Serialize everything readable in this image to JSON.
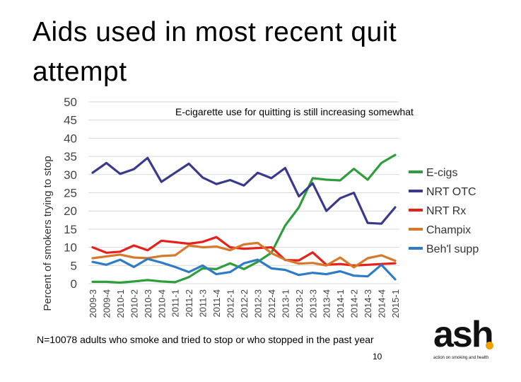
{
  "title": "Aids used in most recent quit attempt",
  "footnote": "N=10078 adults who smoke and tried to stop or who stopped in the past year",
  "page_number": "10",
  "logo": {
    "word": "ash",
    "tagline": "action on smoking and health",
    "dot_color": "#f0a000"
  },
  "chart_data": {
    "type": "line",
    "annotation": "E-cigarette use for quitting is still increasing somewhat",
    "ylabel": "Percent of smokers trying to stop",
    "xlabel": "",
    "ylim": [
      0,
      50
    ],
    "yticks": [
      0,
      5,
      10,
      15,
      20,
      25,
      30,
      35,
      40,
      45,
      50
    ],
    "grid": true,
    "legend_position": "right",
    "x": [
      "2009-3",
      "2009-4",
      "2010-1",
      "2010-2",
      "2010-3",
      "2010-4",
      "2011-1",
      "2011-2",
      "2011-3",
      "2011-4",
      "2012-1",
      "2012-2",
      "2012-3",
      "2012-4",
      "2013-1",
      "2013-2",
      "2013-3",
      "2013-4",
      "2014-1",
      "2014-2",
      "2014-3",
      "2014-4",
      "2015-1"
    ],
    "xlabels_shown": [
      "2009-3",
      "2009-4",
      "2010-1",
      "2010-2",
      "2010-3",
      "2010-4",
      "2011-1",
      "2011-2",
      "2011-3",
      "2011-4",
      "2012-1",
      "2012-2",
      "2012-3",
      "2012-4",
      "2013-1",
      "2013-2",
      "2013-3",
      "2013-4",
      "2014-1",
      "2014-2",
      "2014-3",
      "2014-4",
      "2015-1"
    ],
    "series": [
      {
        "name": "E-cigs",
        "color": "#2e9e3c",
        "values": [
          0.5,
          0.5,
          0.3,
          0.6,
          1.0,
          0.6,
          0.4,
          1.8,
          4.2,
          4.0,
          5.6,
          4.0,
          6.0,
          8.5,
          16.0,
          21.0,
          29.0,
          28.6,
          28.4,
          31.6,
          28.6,
          33.2,
          35.4
        ]
      },
      {
        "name": "NRT OTC",
        "color": "#3a3a8c",
        "values": [
          30.5,
          33.2,
          30.2,
          31.5,
          34.6,
          28.0,
          30.5,
          33.0,
          29.2,
          27.4,
          28.5,
          27.0,
          30.5,
          29.0,
          31.8,
          24.0,
          27.6,
          20.0,
          23.5,
          25.0,
          16.7,
          16.5,
          21.0
        ]
      },
      {
        "name": "NRT Rx",
        "color": "#e8201c",
        "values": [
          10.0,
          8.5,
          8.8,
          10.5,
          9.2,
          11.8,
          11.4,
          11.0,
          11.5,
          12.8,
          10.0,
          9.6,
          9.8,
          10.0,
          6.5,
          6.4,
          8.6,
          5.2,
          5.4,
          5.0,
          5.2,
          5.4,
          5.6
        ]
      },
      {
        "name": "Champix",
        "color": "#d6792a",
        "values": [
          7.0,
          7.5,
          8.0,
          7.2,
          7.0,
          7.6,
          7.8,
          10.5,
          10.0,
          10.2,
          9.2,
          10.8,
          11.2,
          8.4,
          6.6,
          5.5,
          5.7,
          5.0,
          7.2,
          4.5,
          7.0,
          7.8,
          6.3
        ]
      },
      {
        "name": "Beh'l supp",
        "color": "#2f7cc4",
        "values": [
          6.0,
          5.2,
          6.6,
          4.6,
          6.8,
          5.8,
          4.6,
          3.2,
          5.0,
          2.6,
          3.2,
          5.6,
          6.6,
          4.2,
          3.8,
          2.4,
          3.0,
          2.6,
          3.4,
          2.2,
          2.0,
          5.2,
          1.2
        ]
      }
    ]
  }
}
